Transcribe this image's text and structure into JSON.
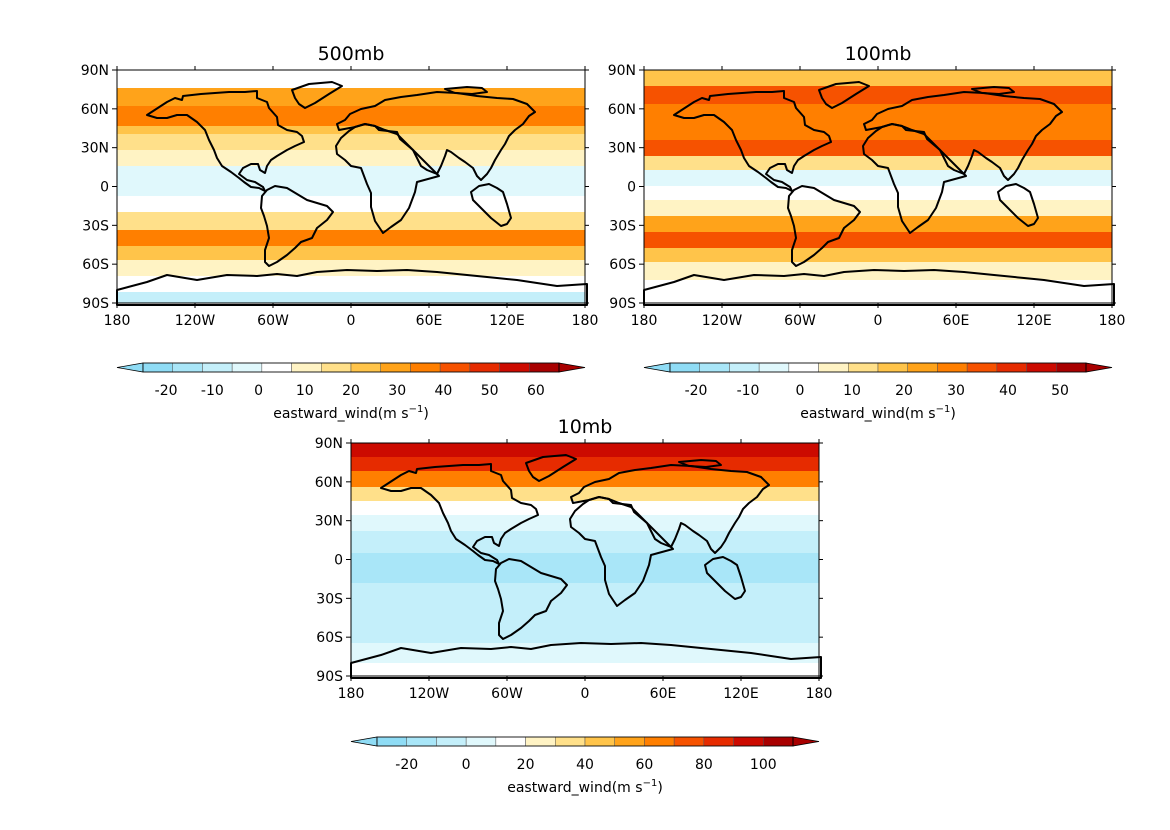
{
  "panels": [
    {
      "title": "500mb",
      "lat_ticks": [
        "90N",
        "60N",
        "30N",
        "0",
        "30S",
        "60S",
        "90S"
      ],
      "lon_ticks": [
        "180",
        "120W",
        "60W",
        "0",
        "60E",
        "120E",
        "180"
      ],
      "colorbar": {
        "labels": [
          "-20",
          "-10",
          "0",
          "10",
          "20",
          "30",
          "40",
          "50",
          "60"
        ],
        "label": "eastward_wind(m s",
        "sup": "−1",
        "label_end": ")"
      }
    },
    {
      "title": "100mb",
      "lat_ticks": [
        "90N",
        "60N",
        "30N",
        "0",
        "30S",
        "60S",
        "90S"
      ],
      "lon_ticks": [
        "180",
        "120W",
        "60W",
        "0",
        "60E",
        "120E",
        "180"
      ],
      "colorbar": {
        "labels": [
          "-20",
          "-10",
          "0",
          "10",
          "20",
          "30",
          "40",
          "50"
        ],
        "label": "eastward_wind(m s",
        "sup": "−1",
        "label_end": ")"
      }
    },
    {
      "title": "10mb",
      "lat_ticks": [
        "90N",
        "60N",
        "30N",
        "0",
        "30S",
        "60S",
        "90S"
      ],
      "lon_ticks": [
        "180",
        "120W",
        "60W",
        "0",
        "60E",
        "120E",
        "180"
      ],
      "colorbar": {
        "labels": [
          "-20",
          "0",
          "20",
          "40",
          "60",
          "80",
          "100"
        ],
        "label": "eastward_wind(m s",
        "sup": "−1",
        "label_end": ")"
      }
    }
  ],
  "colors": {
    "palette": [
      "#8fdcf5",
      "#a9e6f8",
      "#c4effa",
      "#e0f8fc",
      "#ffffff",
      "#fff3c4",
      "#ffe08a",
      "#ffc44a",
      "#ffa31a",
      "#ff7f00",
      "#f65200",
      "#e62b00",
      "#cc0a00",
      "#a80000"
    ],
    "land_outline": "#000000"
  }
}
